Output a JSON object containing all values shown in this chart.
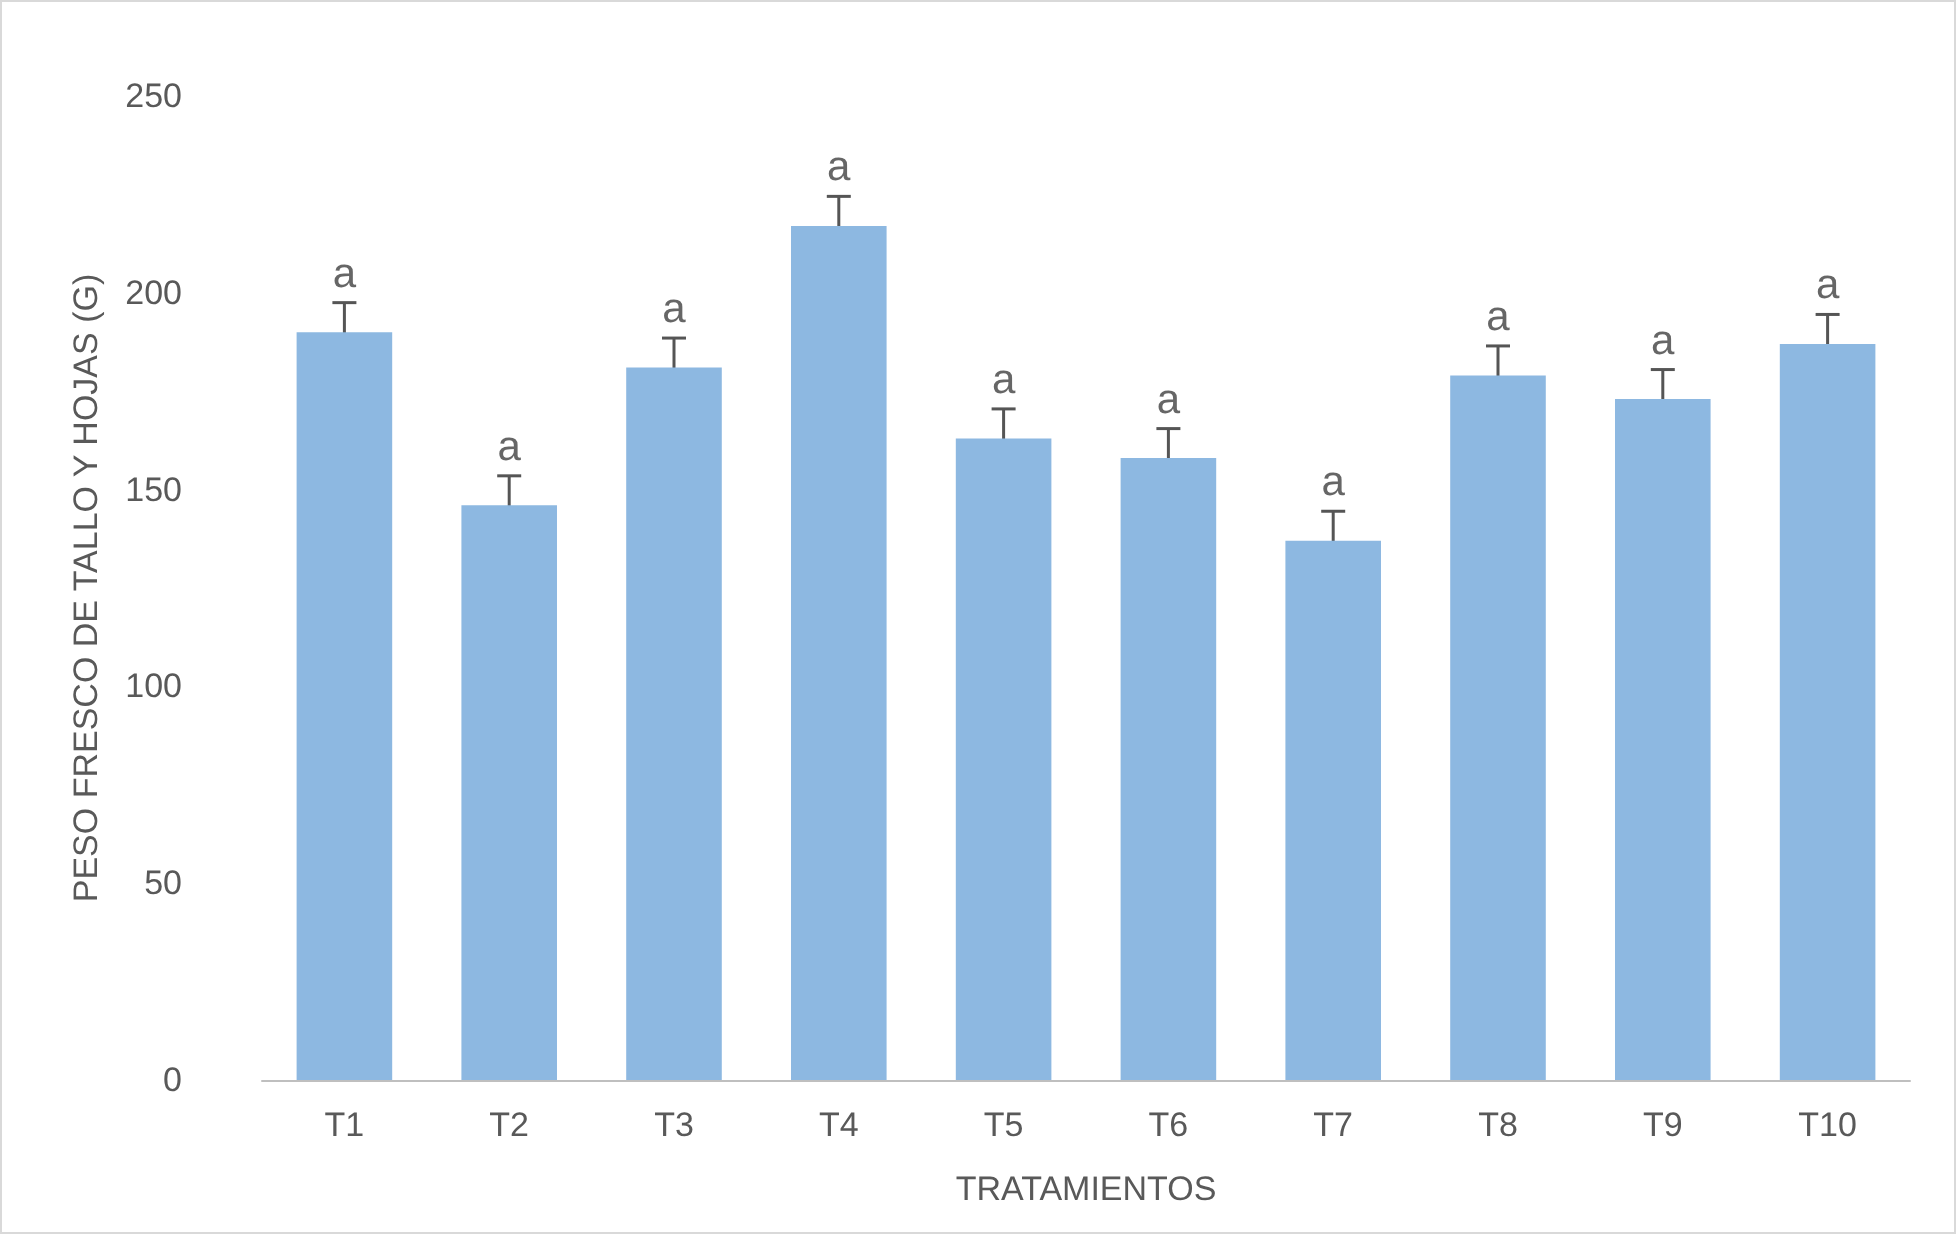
{
  "chart_data": {
    "type": "bar",
    "xlabel": "TRATAMIENTOS",
    "ylabel": "PESO FRESCO DE TALLO Y HOJAS (G)",
    "categories": [
      "T1",
      "T2",
      "T3",
      "T4",
      "T5",
      "T6",
      "T7",
      "T8",
      "T9",
      "T10"
    ],
    "values": [
      190,
      146,
      181,
      217,
      163,
      158,
      137,
      179,
      173,
      187
    ],
    "errors": [
      7.5,
      7.5,
      7.5,
      7.5,
      7.5,
      7.5,
      7.5,
      7.5,
      7.5,
      7.5
    ],
    "value_labels": [
      "a",
      "a",
      "a",
      "a",
      "a",
      "a",
      "a",
      "a",
      "a",
      "a"
    ],
    "color": "#8db8e1",
    "ylim": [
      0,
      250
    ],
    "yticks": [
      0,
      50,
      100,
      150,
      200,
      250
    ],
    "grid": false
  }
}
